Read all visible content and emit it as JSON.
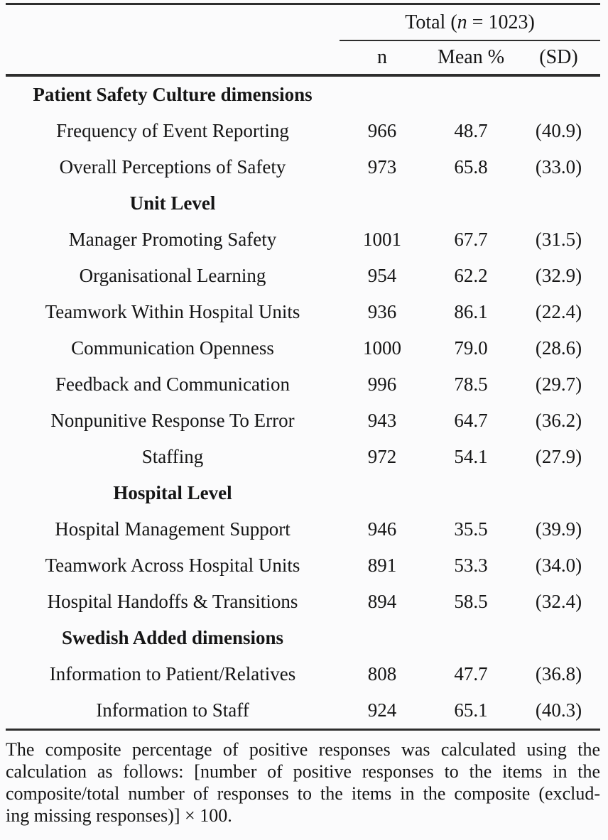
{
  "table": {
    "spanner": {
      "prefix": "Total (",
      "n_italic": "n",
      "suffix": " = 1023)"
    },
    "columns": [
      {
        "label": "n"
      },
      {
        "label": "Mean %"
      },
      {
        "label": "(SD)"
      }
    ],
    "rows": [
      {
        "type": "section",
        "label": "Patient Safety Culture dimensions",
        "n": "",
        "mean": "",
        "sd": ""
      },
      {
        "type": "data",
        "label": "Frequency of Event Reporting",
        "n": "966",
        "mean": "48.7",
        "sd": "(40.9)"
      },
      {
        "type": "data",
        "label": "Overall Perceptions of Safety",
        "n": "973",
        "mean": "65.8",
        "sd": "(33.0)"
      },
      {
        "type": "section",
        "label": "Unit Level",
        "n": "",
        "mean": "",
        "sd": ""
      },
      {
        "type": "data",
        "label": "Manager Promoting Safety",
        "n": "1001",
        "mean": "67.7",
        "sd": "(31.5)"
      },
      {
        "type": "data",
        "label": "Organisational Learning",
        "n": "954",
        "mean": "62.2",
        "sd": "(32.9)"
      },
      {
        "type": "data",
        "label": "Teamwork Within Hospital Units",
        "n": "936",
        "mean": "86.1",
        "sd": "(22.4)"
      },
      {
        "type": "data",
        "label": "Communication Openness",
        "n": "1000",
        "mean": "79.0",
        "sd": "(28.6)"
      },
      {
        "type": "data",
        "label": "Feedback and Communication",
        "n": "996",
        "mean": "78.5",
        "sd": "(29.7)"
      },
      {
        "type": "data",
        "label": "Nonpunitive Response To Error",
        "n": "943",
        "mean": "64.7",
        "sd": "(36.2)"
      },
      {
        "type": "data",
        "label": "Staffing",
        "n": "972",
        "mean": "54.1",
        "sd": "(27.9)"
      },
      {
        "type": "section",
        "label": "Hospital Level",
        "n": "",
        "mean": "",
        "sd": ""
      },
      {
        "type": "data",
        "label": "Hospital Management Support",
        "n": "946",
        "mean": "35.5",
        "sd": "(39.9)"
      },
      {
        "type": "data",
        "label": "Teamwork Across Hospital Units",
        "n": "891",
        "mean": "53.3",
        "sd": "(34.0)"
      },
      {
        "type": "data",
        "label": "Hospital Handoffs & Transitions",
        "n": "894",
        "mean": "58.5",
        "sd": "(32.4)"
      },
      {
        "type": "section",
        "label": "Swedish Added dimensions",
        "n": "",
        "mean": "",
        "sd": ""
      },
      {
        "type": "data",
        "label": "Information to Patient/Relatives",
        "n": "808",
        "mean": "47.7",
        "sd": "(36.8)"
      },
      {
        "type": "data",
        "label": "Information to Staff",
        "n": "924",
        "mean": "65.1",
        "sd": "(40.3)"
      }
    ]
  },
  "footnote": {
    "lines": [
      "The composite percentage of positive responses was calculated using the",
      "calculation as follows: [number of positive responses to the items in the",
      "composite/total number of responses to the items in the composite (exclud-",
      "ing missing responses)] × 100."
    ]
  }
}
